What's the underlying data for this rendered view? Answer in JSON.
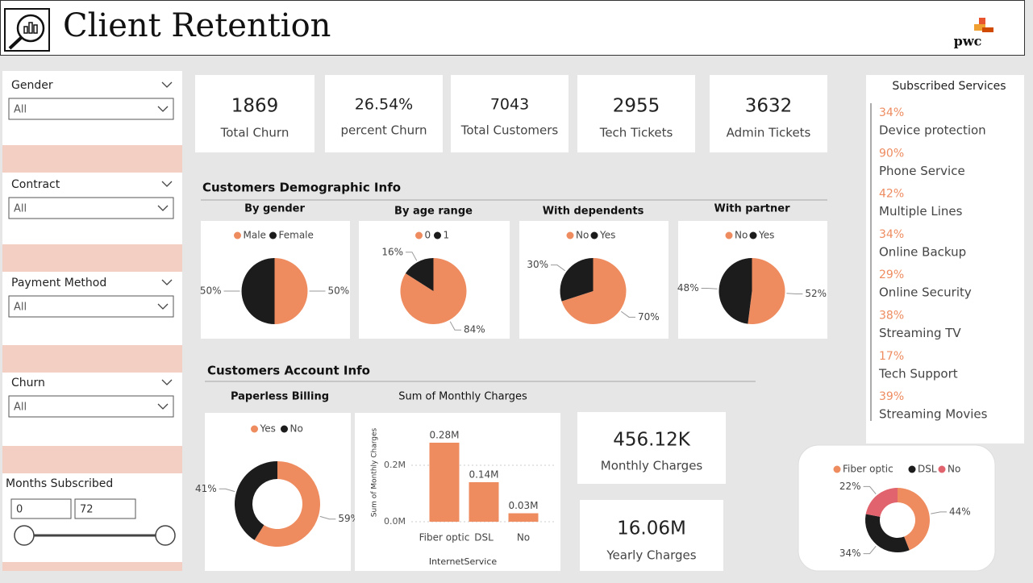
{
  "header": {
    "title": "Client Retention",
    "logo": "pwc"
  },
  "filters": [
    {
      "label": "Gender",
      "value": "All"
    },
    {
      "label": "Contract",
      "value": "All"
    },
    {
      "label": "Payment Method",
      "value": "All"
    },
    {
      "label": "Churn",
      "value": "All"
    }
  ],
  "months": {
    "label": "Months Subscribed",
    "min": 0,
    "max": 72
  },
  "kpis": [
    {
      "value": "1869",
      "label": "Total Churn"
    },
    {
      "value": "26.54%",
      "label": "percent Churn"
    },
    {
      "value": "7043",
      "label": "Total Customers"
    },
    {
      "value": "2955",
      "label": "Tech Tickets"
    },
    {
      "value": "3632",
      "label": "Admin Tickets"
    }
  ],
  "demographic": {
    "title": "Customers Demographic Info",
    "charts": [
      {
        "type": "pie",
        "title": "By gender",
        "labels": [
          "Male",
          "Female"
        ],
        "values": [
          50,
          50
        ],
        "value_labels": [
          "50%",
          "50%"
        ],
        "colors": [
          "#ee8c60",
          "#1c1c1c"
        ]
      },
      {
        "type": "pie",
        "title": "By age range",
        "labels": [
          "0",
          "1"
        ],
        "values": [
          84,
          16
        ],
        "value_labels": [
          "84%",
          "16%"
        ],
        "colors": [
          "#ee8c60",
          "#1c1c1c"
        ]
      },
      {
        "type": "pie",
        "title": "With dependents",
        "labels": [
          "No",
          "Yes"
        ],
        "values": [
          70,
          30
        ],
        "value_labels": [
          "70%",
          "30%"
        ],
        "colors": [
          "#ee8c60",
          "#1c1c1c"
        ]
      },
      {
        "type": "pie",
        "title": "With partner",
        "labels": [
          "No",
          "Yes"
        ],
        "values": [
          52,
          48
        ],
        "value_labels": [
          "52%",
          "48%"
        ],
        "colors": [
          "#ee8c60",
          "#1c1c1c"
        ]
      }
    ]
  },
  "account": {
    "title": "Customers Account Info",
    "billing": {
      "type": "donut",
      "title": "Paperless Billing",
      "labels": [
        "Yes",
        "No"
      ],
      "values": [
        59,
        41
      ],
      "value_labels": [
        "59%",
        "41%"
      ],
      "colors": [
        "#ee8c60",
        "#1c1c1c"
      ]
    },
    "charges_chart": {
      "type": "bar",
      "title": "Sum of Monthly Charges",
      "categories": [
        "Fiber optic",
        "DSL",
        "No"
      ],
      "values": [
        280000,
        140000,
        30000
      ],
      "value_labels": [
        "0.28M",
        "0.14M",
        "0.03M"
      ],
      "color": "#ee8c60",
      "x_label": "InternetService",
      "y_label": "Sum of Monthly Charges",
      "ylim": [
        0,
        300000
      ],
      "yticks": [
        {
          "value": 0,
          "label": "0.0M"
        },
        {
          "value": 200000,
          "label": "0.2M"
        }
      ],
      "grid": true
    },
    "monthly": {
      "value": "456.12K",
      "label": "Monthly Charges"
    },
    "yearly": {
      "value": "16.06M",
      "label": "Yearly Charges"
    },
    "internet": {
      "type": "donut",
      "labels": [
        "Fiber optic",
        "DSL",
        "No"
      ],
      "values": [
        44,
        34,
        22
      ],
      "value_labels": [
        "44%",
        "34%",
        "22%"
      ],
      "colors": [
        "#ee8c60",
        "#1c1c1c",
        "#e0636d"
      ]
    }
  },
  "services": {
    "title": "Subscribed Services",
    "items": [
      {
        "pct": "34%",
        "name": "Device protection"
      },
      {
        "pct": "90%",
        "name": "Phone Service"
      },
      {
        "pct": "42%",
        "name": "Multiple Lines"
      },
      {
        "pct": "34%",
        "name": "Online Backup"
      },
      {
        "pct": "29%",
        "name": "Online Security"
      },
      {
        "pct": "38%",
        "name": "Streaming TV"
      },
      {
        "pct": "17%",
        "name": "Tech Support"
      },
      {
        "pct": "39%",
        "name": "Streaming Movies"
      }
    ]
  }
}
